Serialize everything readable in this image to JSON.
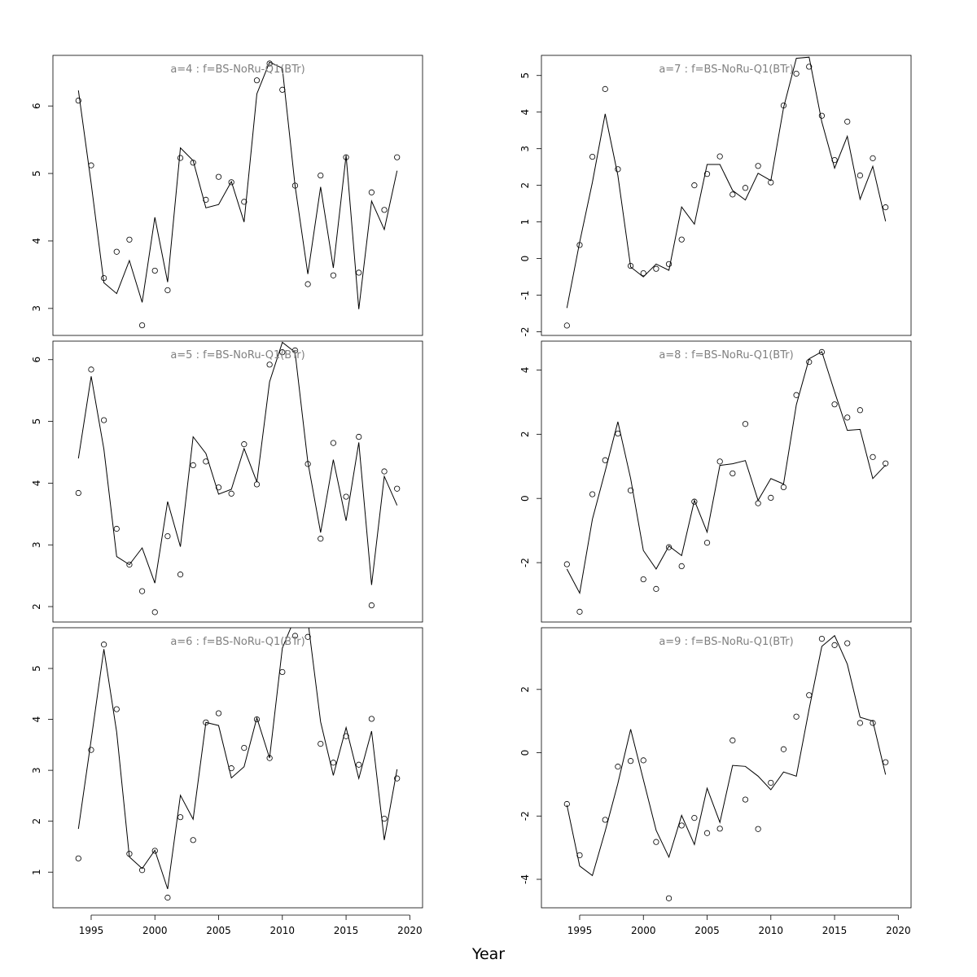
{
  "figure": {
    "xlabel": "Year"
  },
  "chart_data": [
    {
      "type": "line",
      "title": "a=4  :  f=BS-NoRu-Q1(BTr)",
      "x": [
        1994,
        1995,
        1996,
        1997,
        1998,
        1999,
        2000,
        2001,
        2002,
        2003,
        2004,
        2005,
        2006,
        2007,
        2008,
        2009,
        2010,
        2011,
        2012,
        2013,
        2014,
        2015,
        2016,
        2017,
        2018,
        2019
      ],
      "xlim": [
        1992,
        2021
      ],
      "xticks": [
        1995,
        2000,
        2005,
        2010,
        2015,
        2020
      ],
      "ylim": [
        2.6,
        6.75
      ],
      "yticks": [
        3,
        4,
        5,
        6
      ],
      "series": [
        {
          "style": "points",
          "values": [
            6.08,
            5.12,
            3.45,
            3.84,
            4.02,
            2.75,
            3.56,
            3.27,
            5.23,
            5.16,
            4.61,
            4.95,
            4.87,
            4.58,
            6.38,
            6.63,
            6.24,
            4.82,
            3.36,
            4.97,
            3.49,
            5.24,
            3.53,
            4.72,
            4.46,
            5.24
          ]
        },
        {
          "style": "line",
          "values": [
            6.23,
            4.85,
            3.38,
            3.22,
            3.71,
            3.09,
            4.35,
            3.39,
            5.38,
            5.19,
            4.49,
            4.54,
            4.88,
            4.28,
            6.18,
            6.65,
            6.56,
            4.82,
            3.51,
            4.8,
            3.6,
            5.27,
            2.99,
            4.59,
            4.17,
            5.04
          ]
        }
      ]
    },
    {
      "type": "line",
      "title": "a=7  :  f=BS-NoRu-Q1(BTr)",
      "x": [
        1994,
        1995,
        1996,
        1997,
        1998,
        1999,
        2000,
        2001,
        2002,
        2003,
        2004,
        2005,
        2006,
        2007,
        2008,
        2009,
        2010,
        2011,
        2012,
        2013,
        2014,
        2015,
        2016,
        2017,
        2018,
        2019
      ],
      "xlim": [
        1992,
        2021
      ],
      "xticks": [
        1995,
        2000,
        2005,
        2010,
        2015,
        2020
      ],
      "ylim": [
        -2.1,
        5.55
      ],
      "yticks": [
        -2,
        -1,
        0,
        1,
        2,
        3,
        4,
        5
      ],
      "series": [
        {
          "style": "points",
          "values": [
            -1.83,
            0.37,
            2.78,
            4.63,
            2.44,
            -0.2,
            -0.4,
            -0.28,
            -0.15,
            0.52,
            2.0,
            2.31,
            2.79,
            1.75,
            1.93,
            2.53,
            2.08,
            4.18,
            5.05,
            5.24,
            3.9,
            2.69,
            3.74,
            2.27,
            2.74,
            1.4
          ]
        },
        {
          "style": "line",
          "values": [
            -1.35,
            0.45,
            2.08,
            3.95,
            2.27,
            -0.23,
            -0.5,
            -0.15,
            -0.32,
            1.41,
            0.94,
            2.57,
            2.57,
            1.86,
            1.6,
            2.33,
            2.13,
            4.12,
            5.47,
            5.5,
            3.73,
            2.47,
            3.34,
            1.62,
            2.52,
            1.02
          ]
        }
      ]
    },
    {
      "type": "line",
      "title": "a=5  :  f=BS-NoRu-Q1(BTr)",
      "x": [
        1994,
        1995,
        1996,
        1997,
        1998,
        1999,
        2000,
        2001,
        2002,
        2003,
        2004,
        2005,
        2006,
        2007,
        2008,
        2009,
        2010,
        2011,
        2012,
        2013,
        2014,
        2015,
        2016,
        2017,
        2018,
        2019
      ],
      "xlim": [
        1992,
        2021
      ],
      "xticks": [
        1995,
        2000,
        2005,
        2010,
        2015,
        2020
      ],
      "ylim": [
        1.75,
        6.3
      ],
      "yticks": [
        2,
        3,
        4,
        5,
        6
      ],
      "series": [
        {
          "style": "points",
          "values": [
            3.84,
            5.84,
            5.02,
            3.26,
            2.68,
            2.25,
            1.91,
            3.14,
            2.52,
            4.29,
            4.35,
            3.93,
            3.83,
            4.63,
            3.98,
            5.92,
            6.12,
            6.15,
            4.31,
            3.1,
            4.65,
            3.78,
            4.75,
            2.02,
            4.19,
            3.91
          ]
        },
        {
          "style": "line",
          "values": [
            4.4,
            5.73,
            4.55,
            2.81,
            2.68,
            2.95,
            2.38,
            3.7,
            2.97,
            4.75,
            4.48,
            3.82,
            3.9,
            4.56,
            4.02,
            5.64,
            6.28,
            6.12,
            4.34,
            3.2,
            4.38,
            3.39,
            4.66,
            2.35,
            4.11,
            3.64
          ]
        }
      ]
    },
    {
      "type": "line",
      "title": "a=8  :  f=BS-NoRu-Q1(BTr)",
      "x": [
        1994,
        1995,
        1996,
        1997,
        1998,
        1999,
        2000,
        2001,
        2002,
        2003,
        2004,
        2005,
        2006,
        2007,
        2008,
        2009,
        2010,
        2011,
        2012,
        2013,
        2014,
        2015,
        2016,
        2017,
        2018,
        2019
      ],
      "xlim": [
        1992,
        2021
      ],
      "xticks": [
        1995,
        2000,
        2005,
        2010,
        2015,
        2020
      ],
      "ylim": [
        -3.85,
        4.9
      ],
      "yticks": [
        -2,
        0,
        2,
        4
      ],
      "series": [
        {
          "style": "points",
          "values": [
            -2.05,
            -3.53,
            0.13,
            1.19,
            2.02,
            0.25,
            -2.52,
            -2.82,
            -1.52,
            -2.11,
            -0.1,
            -1.38,
            1.15,
            0.78,
            2.32,
            -0.15,
            0.02,
            0.35,
            3.22,
            4.25,
            4.56,
            2.93,
            2.52,
            2.75,
            1.29,
            1.09
          ]
        },
        {
          "style": "line",
          "values": [
            -2.2,
            -2.95,
            -0.65,
            0.85,
            2.39,
            0.62,
            -1.62,
            -2.2,
            -1.48,
            -1.78,
            -0.06,
            -1.05,
            1.03,
            1.08,
            1.18,
            -0.06,
            0.62,
            0.45,
            2.92,
            4.35,
            4.57,
            3.32,
            2.12,
            2.15,
            0.62,
            1.04
          ]
        }
      ]
    },
    {
      "type": "line",
      "title": "a=6  :  f=BS-NoRu-Q1(BTr)",
      "x": [
        1994,
        1995,
        1996,
        1997,
        1998,
        1999,
        2000,
        2001,
        2002,
        2003,
        2004,
        2005,
        2006,
        2007,
        2008,
        2009,
        2010,
        2011,
        2012,
        2013,
        2014,
        2015,
        2016,
        2017,
        2018,
        2019
      ],
      "xlim": [
        1992,
        2021
      ],
      "xticks": [
        1995,
        2000,
        2005,
        2010,
        2015,
        2020
      ],
      "ylim": [
        0.3,
        5.8
      ],
      "yticks": [
        1,
        2,
        3,
        4,
        5
      ],
      "series": [
        {
          "style": "points",
          "values": [
            1.27,
            3.4,
            5.47,
            4.2,
            1.36,
            1.04,
            1.42,
            0.5,
            2.08,
            1.63,
            3.94,
            4.12,
            3.04,
            3.44,
            4.0,
            3.24,
            4.93,
            5.64,
            5.62,
            3.52,
            3.15,
            3.67,
            3.11,
            4.01,
            2.05,
            2.84
          ]
        },
        {
          "style": "line",
          "values": [
            1.85,
            3.6,
            5.38,
            3.75,
            1.3,
            1.07,
            1.43,
            0.67,
            2.51,
            2.04,
            3.94,
            3.88,
            2.85,
            3.07,
            4.03,
            3.24,
            5.4,
            6.0,
            5.95,
            3.95,
            2.9,
            3.84,
            2.84,
            3.77,
            1.63,
            3.02
          ]
        }
      ]
    },
    {
      "type": "line",
      "title": "a=9  :  f=BS-NoRu-Q1(BTr)",
      "x": [
        1994,
        1995,
        1996,
        1997,
        1998,
        1999,
        2000,
        2001,
        2002,
        2003,
        2004,
        2005,
        2006,
        2007,
        2008,
        2009,
        2010,
        2011,
        2012,
        2013,
        2014,
        2015,
        2016,
        2017,
        2018,
        2019
      ],
      "xlim": [
        1992,
        2021
      ],
      "xticks": [
        1995,
        2000,
        2005,
        2010,
        2015,
        2020
      ],
      "ylim": [
        -4.9,
        3.95
      ],
      "yticks": [
        -4,
        -2,
        0,
        2
      ],
      "series": [
        {
          "style": "points",
          "values": [
            -1.62,
            -3.24,
            null,
            -2.12,
            -0.44,
            -0.26,
            -0.24,
            -2.82,
            -4.6,
            -2.3,
            -2.06,
            -2.54,
            -2.4,
            0.39,
            -1.48,
            -2.41,
            -0.95,
            0.11,
            1.14,
            1.82,
            3.6,
            3.4,
            3.46,
            0.94,
            0.94,
            -0.3
          ]
        },
        {
          "style": "line",
          "values": [
            -1.65,
            -3.58,
            -3.88,
            -2.48,
            -0.97,
            0.74,
            -0.85,
            -2.45,
            -3.3,
            -1.98,
            -2.9,
            -1.12,
            -2.2,
            -0.4,
            -0.43,
            -0.74,
            -1.17,
            -0.61,
            -0.74,
            1.38,
            3.36,
            3.7,
            2.8,
            1.12,
            1.0,
            -0.69
          ]
        }
      ]
    }
  ]
}
